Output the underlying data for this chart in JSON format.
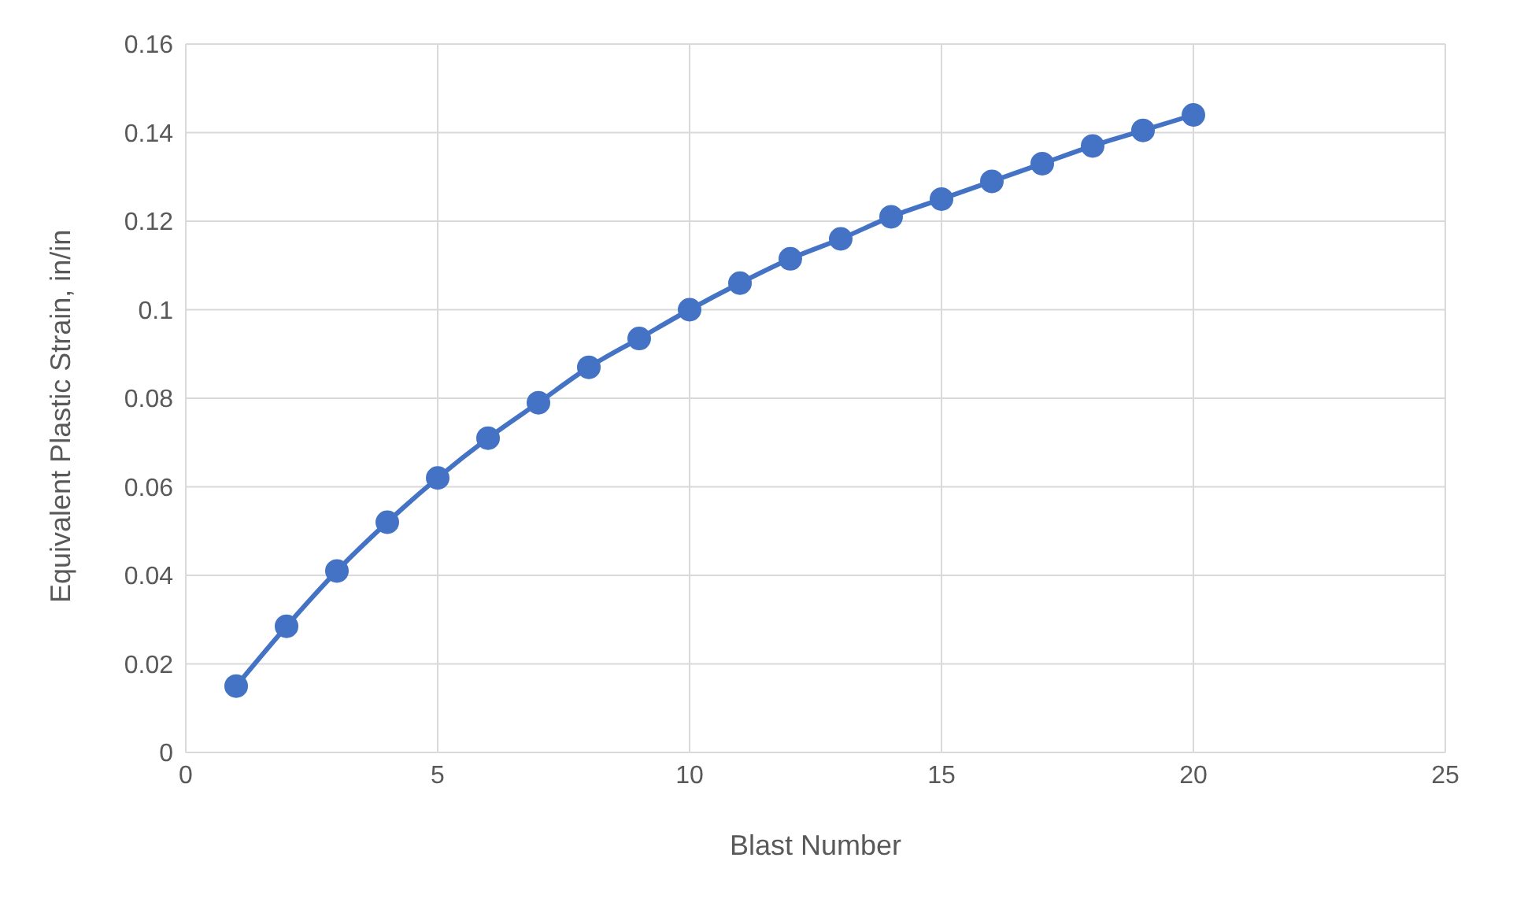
{
  "chart_data": {
    "type": "line",
    "xlabel": "Blast Number",
    "ylabel": "Equivalent Plastic Strain, in/in",
    "x": [
      1,
      2,
      3,
      4,
      5,
      6,
      7,
      8,
      9,
      10,
      11,
      12,
      13,
      14,
      15,
      16,
      17,
      18,
      19,
      20
    ],
    "series": [
      {
        "color": "#4472c4",
        "values": [
          0.015,
          0.0285,
          0.041,
          0.052,
          0.062,
          0.071,
          0.079,
          0.087,
          0.0935,
          0.1,
          0.106,
          0.1115,
          0.116,
          0.121,
          0.125,
          0.129,
          0.133,
          0.137,
          0.1405,
          0.144
        ]
      }
    ],
    "xlim": [
      0,
      25
    ],
    "xticks": [
      0,
      5,
      10,
      15,
      20,
      25
    ],
    "ylim": [
      0,
      0.16
    ],
    "yticks": [
      0,
      0.02,
      0.04,
      0.06,
      0.08,
      0.1,
      0.12,
      0.14,
      0.16
    ],
    "grid": true,
    "marker": "circle",
    "line_style": "solid",
    "legend": false
  }
}
